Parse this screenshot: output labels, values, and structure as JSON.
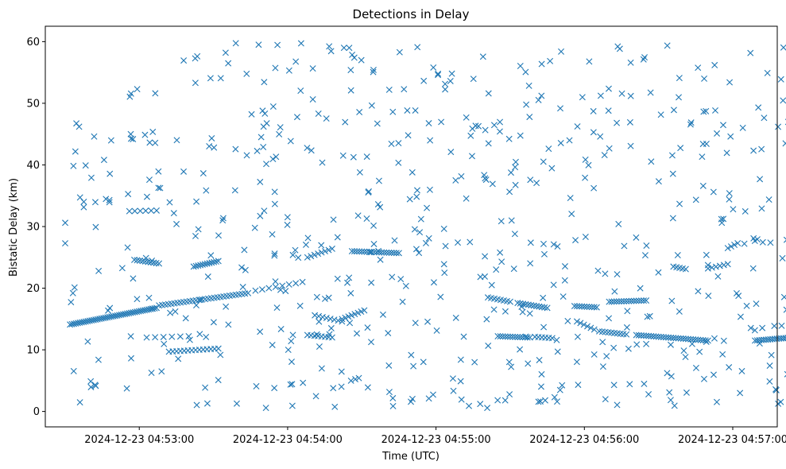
{
  "chart_data": {
    "type": "scatter",
    "title": "Detections in Delay",
    "xlabel": "Time (UTC)",
    "ylabel": "Bistatic Delay (km)",
    "x_unit": "seconds after 2024-12-23 04:52:00",
    "xlim": [
      22,
      318
    ],
    "ylim": [
      -2.5,
      62.5
    ],
    "x_ticks": [
      {
        "value": 60,
        "label": "2024-12-23 04:53:00"
      },
      {
        "value": 120,
        "label": "2024-12-23 04:54:00"
      },
      {
        "value": 180,
        "label": "2024-12-23 04:55:00"
      },
      {
        "value": 240,
        "label": "2024-12-23 04:56:00"
      },
      {
        "value": 300,
        "label": "2024-12-23 04:57:00"
      }
    ],
    "y_ticks": [
      0,
      10,
      20,
      30,
      40,
      50,
      60
    ],
    "grid": false,
    "marker": "x",
    "marker_color": "#1f77b4",
    "series": [
      {
        "tracks": [
          {
            "x0": 32,
            "y0": 14.1,
            "x1": 67,
            "y1": 16.8,
            "n": 45
          },
          {
            "x0": 68,
            "y0": 17.2,
            "x1": 104,
            "y1": 19.2,
            "n": 30
          },
          {
            "x0": 107,
            "y0": 19.6,
            "x1": 126,
            "y1": 21.0,
            "n": 8
          },
          {
            "x0": 58,
            "y0": 24.6,
            "x1": 68,
            "y1": 24.0,
            "n": 10
          },
          {
            "x0": 82,
            "y0": 23.5,
            "x1": 92,
            "y1": 24.4,
            "n": 12
          },
          {
            "x0": 128,
            "y0": 25.0,
            "x1": 138,
            "y1": 26.4,
            "n": 8
          },
          {
            "x0": 146,
            "y0": 26.0,
            "x1": 165,
            "y1": 25.7,
            "n": 20
          },
          {
            "x0": 142,
            "y0": 15.0,
            "x1": 151,
            "y1": 16.4,
            "n": 8
          },
          {
            "x0": 63,
            "y0": 12.0,
            "x1": 80,
            "y1": 12.2,
            "n": 6
          },
          {
            "x0": 128,
            "y0": 12.4,
            "x1": 138,
            "y1": 12.0,
            "n": 8
          },
          {
            "x0": 131,
            "y0": 15.6,
            "x1": 142,
            "y1": 14.6,
            "n": 8
          },
          {
            "x0": 72,
            "y0": 9.7,
            "x1": 92,
            "y1": 10.2,
            "n": 14
          },
          {
            "x0": 56,
            "y0": 32.5,
            "x1": 67,
            "y1": 32.6,
            "n": 6
          },
          {
            "x0": 201,
            "y0": 18.5,
            "x1": 210,
            "y1": 17.8,
            "n": 8
          },
          {
            "x0": 213,
            "y0": 17.6,
            "x1": 225,
            "y1": 16.8,
            "n": 12
          },
          {
            "x0": 236,
            "y0": 17.1,
            "x1": 245,
            "y1": 16.9,
            "n": 10
          },
          {
            "x0": 250,
            "y0": 17.8,
            "x1": 265,
            "y1": 18.0,
            "n": 16
          },
          {
            "x0": 205,
            "y0": 12.2,
            "x1": 218,
            "y1": 12.0,
            "n": 14
          },
          {
            "x0": 220,
            "y0": 12.1,
            "x1": 227,
            "y1": 11.9,
            "n": 6
          },
          {
            "x0": 237,
            "y0": 14.6,
            "x1": 244,
            "y1": 13.3,
            "n": 6
          },
          {
            "x0": 246,
            "y0": 13.0,
            "x1": 257,
            "y1": 12.5,
            "n": 10
          },
          {
            "x0": 261,
            "y0": 12.4,
            "x1": 290,
            "y1": 11.5,
            "n": 30
          },
          {
            "x0": 276,
            "y0": 23.5,
            "x1": 281,
            "y1": 23.1,
            "n": 5
          },
          {
            "x0": 290,
            "y0": 23.2,
            "x1": 298,
            "y1": 23.9,
            "n": 6
          },
          {
            "x0": 298,
            "y0": 26.5,
            "x1": 302,
            "y1": 27.3,
            "n": 4
          },
          {
            "x0": 309,
            "y0": 11.5,
            "x1": 324,
            "y1": 12.0,
            "n": 18
          }
        ],
        "noise_count": 600,
        "noise_seed": 12345,
        "noise_xlim": [
          30,
          325
        ],
        "noise_ylim": [
          0.5,
          59.8
        ]
      }
    ]
  }
}
